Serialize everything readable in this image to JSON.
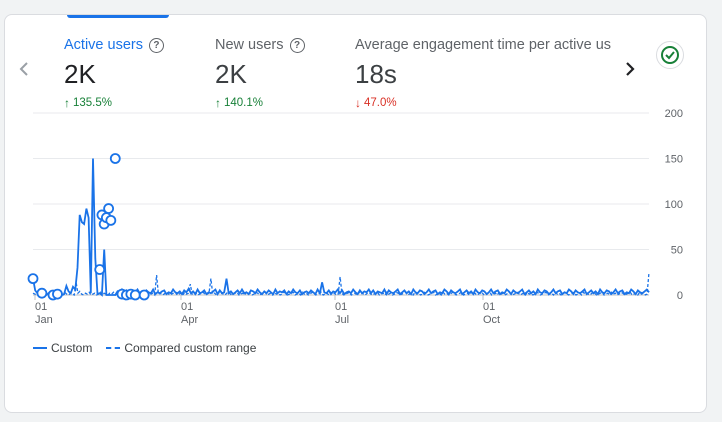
{
  "metrics": [
    {
      "label": "Active users",
      "value": "2K",
      "delta": "135.5%",
      "direction": "up"
    },
    {
      "label": "New users",
      "value": "2K",
      "delta": "140.1%",
      "direction": "up"
    },
    {
      "label": "Average engagement time per active us",
      "value": "18s",
      "delta": "47.0%",
      "direction": "down"
    }
  ],
  "help_glyph": "?",
  "icons": {
    "prev": "chevron-left-icon",
    "next": "chevron-right-icon",
    "status": "check-circle-icon"
  },
  "colors": {
    "accent": "#1a73e8",
    "up": "#188038",
    "down": "#d93025",
    "status": "#188038"
  },
  "legend": {
    "primary": "Custom",
    "comparison": "Compared custom range"
  },
  "chart_data": {
    "type": "line",
    "x_ticks": [
      {
        "day": "01",
        "month": "Jan"
      },
      {
        "day": "01",
        "month": "Apr"
      },
      {
        "day": "01",
        "month": "Jul"
      },
      {
        "day": "01",
        "month": "Oct"
      }
    ],
    "y_ticks": [
      "200",
      "150",
      "100",
      "50",
      "0"
    ],
    "ylim": [
      0,
      200
    ],
    "axis_position": "right",
    "grid": true,
    "series": [
      {
        "name": "Custom",
        "style": "solid",
        "values": [
          18,
          5,
          2,
          1,
          0,
          1,
          0,
          2,
          1,
          0,
          0,
          3,
          2,
          0,
          1,
          10,
          4,
          2,
          9,
          6,
          30,
          88,
          80,
          78,
          95,
          85,
          2,
          150,
          40,
          1,
          2,
          0,
          50,
          0,
          0,
          0,
          0,
          0,
          4,
          2,
          6,
          3,
          5,
          1,
          0,
          2,
          3,
          6,
          2,
          4,
          1,
          5,
          3,
          2,
          6,
          1,
          3,
          2,
          4,
          5,
          1,
          3,
          2,
          6,
          3,
          2,
          4,
          1,
          5,
          3,
          7,
          2,
          4,
          1,
          6,
          2,
          3,
          5,
          1,
          3,
          2,
          4,
          6,
          1,
          5,
          2,
          3,
          18,
          2,
          4,
          1,
          3,
          5,
          2,
          6,
          2,
          3,
          1,
          5,
          4,
          2,
          6,
          3,
          1,
          4,
          2,
          5,
          3,
          1,
          6,
          2,
          4,
          3,
          5,
          1,
          4,
          2,
          6,
          3,
          2,
          5,
          1,
          3,
          4,
          2,
          5,
          3,
          1,
          6,
          2,
          14,
          3,
          2,
          5,
          1,
          4,
          3,
          6,
          2,
          5,
          1,
          3,
          4,
          2,
          6,
          3,
          1,
          5,
          2,
          4,
          3,
          6,
          2,
          5,
          1,
          4,
          3,
          2,
          6,
          1,
          5,
          3,
          2,
          4,
          6,
          1,
          3,
          5,
          2,
          4,
          1,
          6,
          3,
          2,
          5,
          4,
          1,
          3,
          6,
          2,
          4,
          5,
          1,
          3,
          2,
          6,
          4,
          1,
          5,
          3,
          2,
          4,
          6,
          1,
          3,
          5,
          2,
          4,
          1,
          6,
          3,
          2,
          5,
          4,
          1,
          3,
          6,
          2,
          4,
          5,
          1,
          3,
          2,
          6,
          4,
          1,
          5,
          3,
          2,
          4,
          6,
          1,
          3,
          5,
          2,
          4,
          1,
          6,
          3,
          2,
          5,
          4,
          1,
          3,
          6,
          2,
          4,
          5,
          1,
          3,
          2,
          6,
          4,
          1,
          5,
          3,
          2,
          4,
          6,
          1,
          3,
          5,
          2,
          4,
          1,
          6,
          3,
          2,
          5,
          4,
          1,
          3,
          6,
          2,
          4,
          5,
          1,
          3,
          2,
          6,
          4,
          1,
          5,
          3,
          2,
          4,
          6,
          3
        ],
        "points": [
          [
            0,
            18
          ],
          [
            4,
            2
          ],
          [
            9,
            0
          ],
          [
            11,
            1
          ],
          [
            30,
            28
          ],
          [
            31,
            88
          ],
          [
            32,
            78
          ],
          [
            33,
            85
          ],
          [
            34,
            95
          ],
          [
            35,
            82
          ],
          [
            37,
            150
          ],
          [
            40,
            1
          ],
          [
            42,
            0
          ],
          [
            44,
            1
          ],
          [
            46,
            0
          ],
          [
            50,
            0
          ]
        ]
      },
      {
        "name": "Compared custom range",
        "style": "dashed",
        "values": [
          2,
          1,
          0,
          1,
          3,
          0,
          2,
          1,
          0,
          2,
          1,
          0,
          1,
          0,
          2,
          1,
          0,
          3,
          1,
          0,
          2,
          1,
          0,
          14,
          2,
          4,
          1,
          0,
          2,
          1,
          3,
          0,
          1,
          2,
          0,
          1,
          3,
          0,
          2,
          1,
          0,
          2,
          1,
          3,
          0,
          1,
          2,
          0,
          1,
          3,
          2,
          0,
          1,
          2,
          0,
          3,
          1,
          2,
          0,
          1,
          3,
          2,
          0,
          1,
          2,
          0,
          22,
          1,
          2,
          0,
          1,
          3,
          2,
          0,
          1,
          2,
          3,
          0,
          1,
          2,
          0,
          3,
          1,
          2,
          12,
          1,
          3,
          2,
          0,
          1,
          2,
          3,
          0,
          1,
          2,
          18,
          1,
          2,
          0,
          3,
          1,
          2,
          0,
          1,
          3,
          2,
          0,
          1,
          2,
          3,
          0,
          1,
          2,
          0,
          3,
          1,
          2,
          0,
          1,
          3,
          2,
          0,
          1,
          2,
          3,
          0,
          1,
          2,
          0,
          3,
          1,
          2,
          0,
          1,
          3,
          2,
          0,
          1,
          2,
          3,
          0,
          1,
          2,
          0,
          3,
          1,
          2,
          0,
          1,
          3,
          2,
          0,
          1,
          2,
          3,
          0,
          1,
          2,
          0,
          3,
          1,
          2,
          0,
          1,
          20,
          2,
          0,
          1,
          2,
          3,
          0,
          1,
          2,
          0,
          3,
          1,
          2,
          0,
          1,
          3,
          2,
          0,
          1,
          2,
          3,
          0,
          1,
          2,
          0,
          3,
          1,
          2,
          0,
          1,
          3,
          2,
          0,
          1,
          2,
          3,
          0,
          1,
          2,
          0,
          3,
          1,
          2,
          0,
          1,
          3,
          2,
          0,
          1,
          2,
          3,
          0,
          1,
          2,
          0,
          3,
          1,
          2,
          0,
          1,
          3,
          2,
          0,
          1,
          2,
          3,
          0,
          1,
          2,
          0,
          3,
          1,
          2,
          0,
          1,
          3,
          2,
          0,
          1,
          2,
          3,
          0,
          1,
          2,
          0,
          3,
          1,
          2,
          0,
          1,
          3,
          2,
          0,
          1,
          2,
          3,
          0,
          1,
          2,
          0,
          3,
          1,
          2,
          0,
          1,
          3,
          2,
          0,
          1,
          2,
          3,
          0,
          1,
          2,
          0,
          3,
          1,
          2,
          0,
          1,
          3,
          2,
          0,
          1,
          2,
          3,
          0,
          1,
          2,
          0,
          3,
          1,
          2,
          0,
          1,
          3,
          2,
          0,
          1,
          2,
          3,
          0,
          1,
          2,
          0,
          3,
          1,
          2,
          0,
          1,
          3,
          2,
          0,
          1,
          2,
          3,
          0,
          1,
          2,
          0,
          3,
          1,
          2,
          0,
          1,
          25
        ]
      }
    ]
  }
}
